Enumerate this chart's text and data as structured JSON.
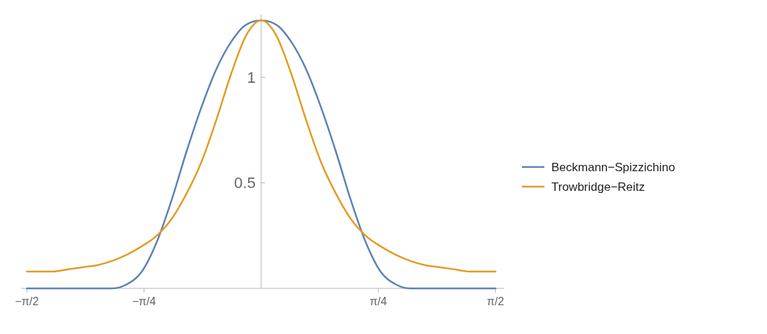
{
  "chart_data": {
    "type": "line",
    "x": [
      -1.5708,
      -1.5,
      -1.4,
      -1.3,
      -1.2,
      -1.1,
      -1,
      -0.9,
      -0.8,
      -0.7,
      -0.6,
      -0.5,
      -0.4,
      -0.3,
      -0.2,
      -0.1,
      0,
      0.1,
      0.2,
      0.3,
      0.4,
      0.5,
      0.6,
      0.7,
      0.8,
      0.9,
      1,
      1.1,
      1.2,
      1.3,
      1.4,
      1.5,
      1.5708
    ],
    "series": [
      {
        "name": "Beckmann−Spizzichino",
        "color": "#5e81b5",
        "values": [
          0,
          0,
          0,
          0,
          0,
          0,
          0,
          0.02,
          0.08,
          0.22,
          0.42,
          0.65,
          0.86,
          1.04,
          1.17,
          1.25,
          1.27,
          1.25,
          1.17,
          1.04,
          0.86,
          0.65,
          0.42,
          0.22,
          0.08,
          0.02,
          0,
          0,
          0,
          0,
          0,
          0,
          0
        ]
      },
      {
        "name": "Trowbridge−Reitz",
        "color": "#e19c24",
        "values": [
          0.08,
          0.08,
          0.08,
          0.09,
          0.1,
          0.11,
          0.13,
          0.16,
          0.2,
          0.25,
          0.33,
          0.45,
          0.6,
          0.8,
          1.02,
          1.2,
          1.27,
          1.2,
          1.02,
          0.8,
          0.6,
          0.45,
          0.33,
          0.25,
          0.2,
          0.16,
          0.13,
          0.11,
          0.1,
          0.09,
          0.08,
          0.08,
          0.08
        ]
      }
    ],
    "xlim": [
      -1.61,
      1.63
    ],
    "ylim": [
      0,
      1.3
    ],
    "xticks": [
      {
        "value": -1.5708,
        "label": "−π/2"
      },
      {
        "value": -0.7854,
        "label": "−π/4"
      },
      {
        "value": 0.7854,
        "label": "π/4"
      },
      {
        "value": 1.5708,
        "label": "π/2"
      }
    ],
    "yticks": [
      0.5,
      1
    ],
    "legend": "right",
    "grid": false
  }
}
